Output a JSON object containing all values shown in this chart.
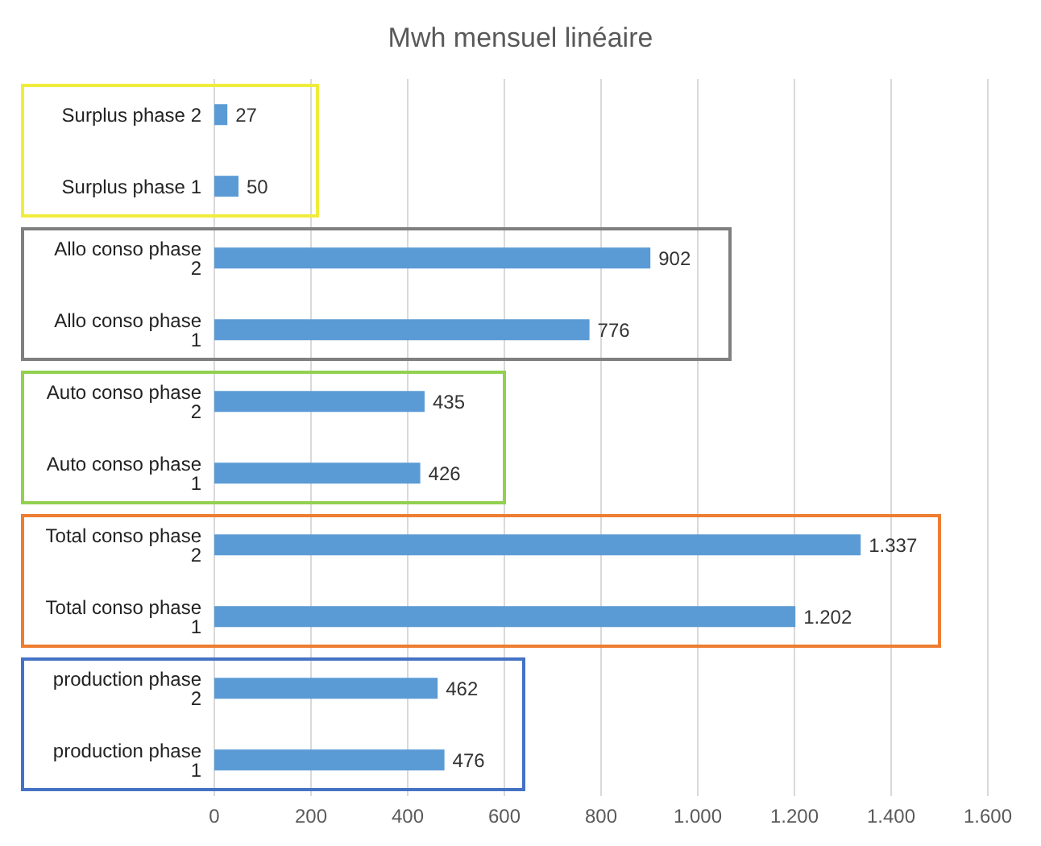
{
  "chart_data": {
    "type": "bar",
    "orientation": "horizontal",
    "title": "Mwh mensuel linéaire",
    "categories": [
      "Surplus phase 2",
      "Surplus phase 1",
      "Allo conso phase 2",
      "Allo conso phase 1",
      "Auto conso phase 2",
      "Auto conso phase 1",
      "Total conso phase 2",
      "Total conso phase 1",
      "production phase 2",
      "production phase 1"
    ],
    "values": [
      27,
      50,
      902,
      776,
      435,
      426,
      1337,
      1202,
      462,
      476
    ],
    "value_labels": [
      "27",
      "50",
      "902",
      "776",
      "435",
      "426",
      "1.337",
      "1.202",
      "462",
      "476"
    ],
    "color": "#5b9bd5",
    "xlim": [
      0,
      1600
    ],
    "xticks": [
      0,
      200,
      400,
      600,
      800,
      {
        "value": 1000,
        "label": "1.000"
      },
      {
        "value": 1200,
        "label": "1.200"
      },
      {
        "value": 1400,
        "label": "1.400"
      },
      {
        "value": 1600,
        "label": "1.600"
      }
    ],
    "grid": "x"
  }
}
